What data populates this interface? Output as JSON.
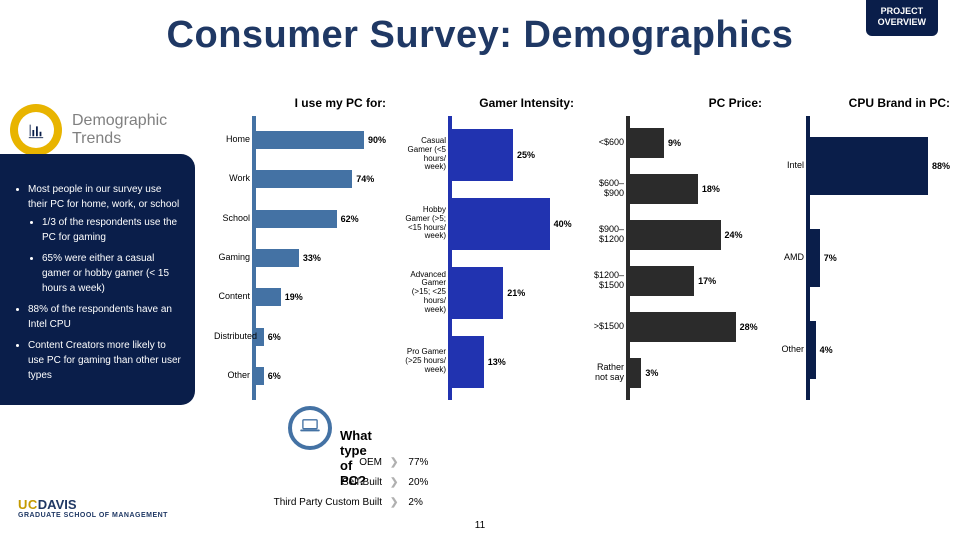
{
  "page": {
    "title": "Consumer Survey: Demographics",
    "badge_line1": "PROJECT",
    "badge_line2": "OVERVIEW",
    "page_number": "11"
  },
  "demo_header": {
    "label": "Demographic\nTrends"
  },
  "sidebar": {
    "items": [
      {
        "text": "Most people in our survey use their PC for home, work, or school",
        "sub": [
          {
            "text": "1/3 of the respondents use the PC for gaming"
          },
          {
            "text": "65% were either a casual gamer or hobby gamer (< 15 hours a week)"
          }
        ]
      },
      {
        "text": "88% of the respondents have an Intel CPU"
      },
      {
        "text": "Content Creators more likely to use PC for gaming than other user types"
      }
    ]
  },
  "charts": {
    "chart1": {
      "type": "bar",
      "title": "I use my PC for:",
      "axis_color": "#4472a4",
      "bar_color": "#4472a4",
      "max": 100,
      "rows": [
        {
          "label": "Home",
          "value": 90,
          "display": "90%"
        },
        {
          "label": "Work",
          "value": 74,
          "display": "74%"
        },
        {
          "label": "School",
          "value": 62,
          "display": "62%"
        },
        {
          "label": "Gaming",
          "value": 33,
          "display": "33%"
        },
        {
          "label": "Content",
          "value": 19,
          "display": "19%"
        },
        {
          "label": "Distributed",
          "value": 6,
          "display": "6%"
        },
        {
          "label": "Other",
          "value": 6,
          "display": "6%"
        }
      ]
    },
    "chart2": {
      "type": "bar",
      "title": "Gamer Intensity:",
      "axis_color": "#2133b0",
      "bar_color": "#2133b0",
      "max": 50,
      "rows": [
        {
          "label": "Casual Gamer (<5 hours/ week)",
          "value": 25,
          "display": "25%"
        },
        {
          "label": "Hobby Gamer (>5; <15 hours/ week)",
          "value": 40,
          "display": "40%"
        },
        {
          "label": "Advanced Gamer (>15; <25 hours/ week)",
          "value": 21,
          "display": "21%"
        },
        {
          "label": "Pro Gamer (>25 hours/ week)",
          "value": 13,
          "display": "13%"
        }
      ]
    },
    "chart3": {
      "type": "bar",
      "title": "PC Price:",
      "axis_color": "#2b2b2b",
      "bar_color": "#2b2b2b",
      "max": 35,
      "rows": [
        {
          "label": "<$600",
          "value": 9,
          "display": "9%"
        },
        {
          "label": "$600–$900",
          "value": 18,
          "display": "18%"
        },
        {
          "label": "$900–$1200",
          "value": 24,
          "display": "24%"
        },
        {
          "label": "$1200–$1500",
          "value": 17,
          "display": "17%"
        },
        {
          "label": ">$1500",
          "value": 28,
          "display": "28%"
        },
        {
          "label": "Rather not say",
          "value": 3,
          "display": "3%"
        }
      ]
    },
    "chart4": {
      "type": "bar",
      "title": "CPU Brand in PC:",
      "axis_color": "#0a1e4a",
      "bar_color": "#0a1e4a",
      "max": 100,
      "rows": [
        {
          "label": "Intel",
          "value": 88,
          "display": "88%"
        },
        {
          "label": "AMD",
          "value": 7,
          "display": "7%"
        },
        {
          "label": "Other",
          "value": 4,
          "display": "4%"
        }
      ]
    }
  },
  "pctype": {
    "title": "What type of PC?",
    "rows": [
      {
        "label": "OEM",
        "value": "77%"
      },
      {
        "label": "Self-Built",
        "value": "20%"
      },
      {
        "label": "Third Party Custom Built",
        "value": "2%"
      }
    ]
  },
  "footer": {
    "uc": "UC",
    "davis": "DAVIS",
    "sub": "GRADUATE SCHOOL OF MANAGEMENT"
  }
}
